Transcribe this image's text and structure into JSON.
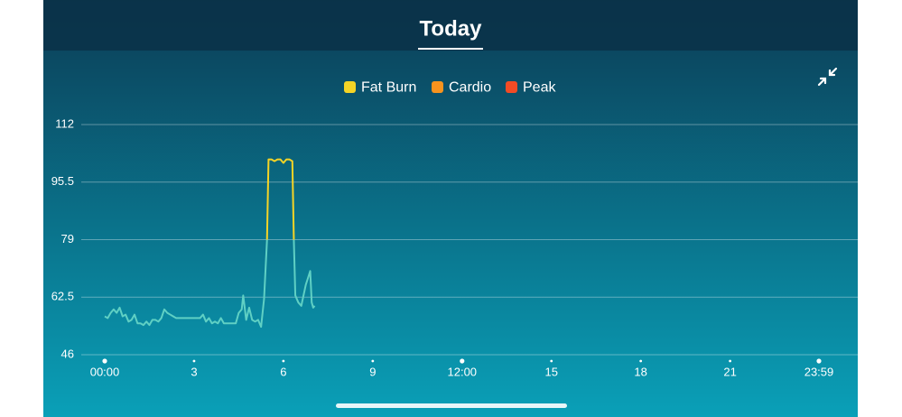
{
  "chart_data": {
    "type": "line",
    "title": "Today",
    "x": [
      0,
      0.1,
      0.2,
      0.3,
      0.4,
      0.5,
      0.6,
      0.7,
      0.8,
      0.9,
      1.0,
      1.1,
      1.2,
      1.3,
      1.4,
      1.5,
      1.6,
      1.7,
      1.8,
      1.9,
      2.0,
      2.1,
      2.2,
      2.3,
      2.4,
      2.6,
      2.8,
      3.0,
      3.2,
      3.3,
      3.4,
      3.5,
      3.6,
      3.7,
      3.8,
      3.9,
      4.0,
      4.2,
      4.4,
      4.5,
      4.6,
      4.65,
      4.75,
      4.85,
      4.95,
      5.05,
      5.15,
      5.25,
      5.35,
      5.45,
      5.5,
      5.6,
      5.7,
      5.8,
      5.9,
      6.0,
      6.1,
      6.2,
      6.3,
      6.35,
      6.4,
      6.5,
      6.6,
      6.75,
      6.9,
      6.95,
      7.0,
      7.05
    ],
    "values": [
      57,
      56.5,
      58,
      59,
      58,
      59.5,
      57,
      57.5,
      55.5,
      56,
      57.5,
      55,
      55,
      54.5,
      55.5,
      54.5,
      56,
      56,
      55.5,
      56.5,
      59,
      58,
      57.5,
      57,
      56.5,
      56.5,
      56.5,
      56.5,
      56.5,
      57.5,
      55.5,
      56.5,
      55,
      55.5,
      55,
      56.5,
      55,
      55,
      55,
      58,
      59,
      63,
      56,
      59.5,
      56,
      55.5,
      56,
      54,
      62,
      79,
      null,
      null,
      null,
      null,
      null,
      null,
      null,
      null,
      null,
      79,
      63,
      61,
      60,
      66,
      70,
      61,
      59.5,
      60
    ],
    "color": "#5fd0c4",
    "series": [
      {
        "name": "Fat Burn",
        "color": "#f5d426",
        "values": [
          null,
          null,
          null,
          null,
          null,
          null,
          null,
          null,
          null,
          null,
          null,
          null,
          null,
          null,
          null,
          null,
          null,
          null,
          null,
          null,
          null,
          null,
          null,
          null,
          null,
          null,
          null,
          null,
          null,
          null,
          null,
          null,
          null,
          null,
          null,
          null,
          null,
          null,
          null,
          null,
          null,
          null,
          null,
          null,
          null,
          null,
          null,
          null,
          null,
          79,
          102,
          102,
          101.5,
          102,
          102,
          101,
          102,
          102,
          101.5,
          79,
          null,
          null,
          null,
          null,
          null,
          null,
          null,
          null
        ]
      },
      {
        "name": "Cardio",
        "color": "#f7931e",
        "values": [
          null,
          null,
          null,
          null,
          null,
          null,
          null,
          null,
          null,
          null,
          null,
          null,
          null,
          null,
          null,
          null,
          null,
          null,
          null,
          null,
          null,
          null,
          null,
          null,
          null,
          null,
          null,
          null,
          null,
          null,
          null,
          null,
          null,
          null,
          null,
          null,
          null,
          null,
          null,
          null,
          null,
          null,
          null,
          null,
          null,
          null,
          null,
          null,
          null,
          null,
          null,
          null,
          null,
          null,
          null,
          null,
          null,
          null,
          null,
          null,
          null,
          null,
          null,
          null,
          null,
          null,
          null,
          null
        ]
      },
      {
        "name": "Peak",
        "color": "#f24b25",
        "values": [
          null,
          null,
          null,
          null,
          null,
          null,
          null,
          null,
          null,
          null,
          null,
          null,
          null,
          null,
          null,
          null,
          null,
          null,
          null,
          null,
          null,
          null,
          null,
          null,
          null,
          null,
          null,
          null,
          null,
          null,
          null,
          null,
          null,
          null,
          null,
          null,
          null,
          null,
          null,
          null,
          null,
          null,
          null,
          null,
          null,
          null,
          null,
          null,
          null,
          null,
          null,
          null,
          null,
          null,
          null,
          null,
          null,
          null,
          null,
          null,
          null,
          null,
          null,
          null,
          null,
          null,
          null,
          null
        ]
      }
    ],
    "xlim": [
      0,
      23.983
    ],
    "xticks": [
      {
        "value": 0,
        "label": "00:00"
      },
      3,
      6,
      9,
      {
        "value": 12,
        "label": "12:00"
      },
      15,
      18,
      21,
      {
        "value": 23.983,
        "label": "23:59"
      }
    ],
    "ylim": [
      46,
      112
    ],
    "yticks": [
      46,
      62.5,
      79,
      95.5,
      112
    ],
    "grid": true
  }
}
